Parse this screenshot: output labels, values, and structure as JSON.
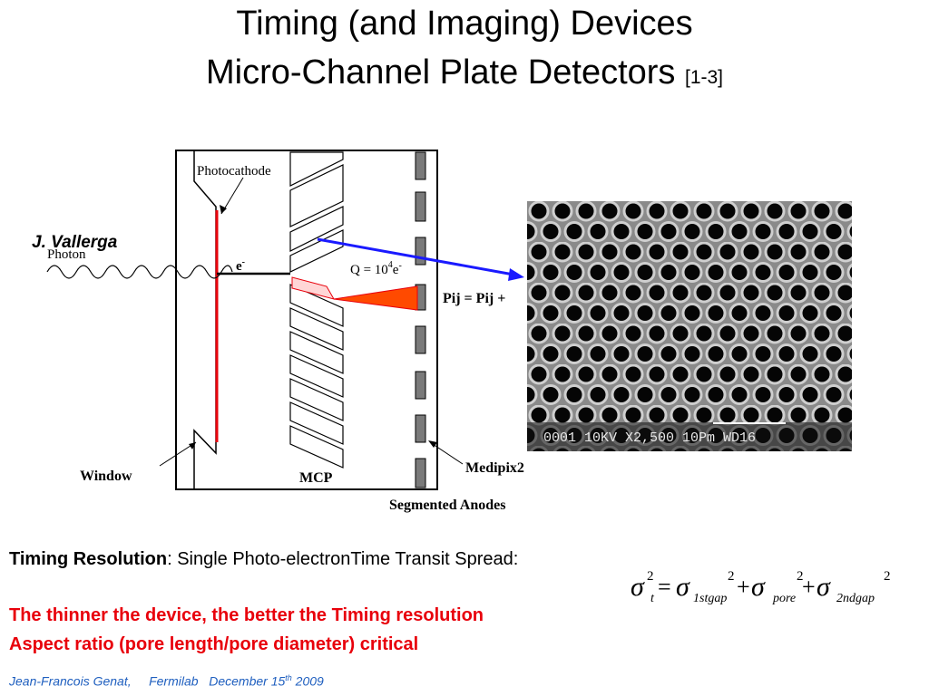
{
  "title": {
    "line1": "Timing (and Imaging) Devices",
    "line2": "Micro-Channel Plate Detectors",
    "reference": "[1-3]"
  },
  "credit": "J. Vallerga",
  "diagram": {
    "photocathode_label": "Photocathode",
    "photon_label": "Photon",
    "electron_label": "e",
    "electron_sup": "-",
    "gain_label": "Q = 10",
    "gain_exp": "4",
    "gain_unit": "e",
    "gain_unit_sup": "-",
    "pij_label": "Pij = Pij +",
    "window_label": "Window",
    "mcp_label": "MCP",
    "medipix_label": "Medipix2",
    "anodes_label": "Segmented  Anodes"
  },
  "micrograph": {
    "caption": "0001  10KV   X2,500   10Pm WD16"
  },
  "timing": {
    "label": "Timing Resolution",
    "text": ":   Single Photo-electronTime Transit Spread:"
  },
  "formula": {
    "sigma": "σ",
    "sub_t": "t",
    "sub_1": "1stgap",
    "sub_pore": "pore",
    "sub_2": "2ndgap",
    "exp": "2",
    "eq": "=",
    "plus": "+"
  },
  "notes": {
    "line1": "The thinner the device, the better the Timing resolution",
    "line2": "Aspect ratio (pore length/pore diameter) critical"
  },
  "footer": {
    "author": "Jean-Francois Genat,",
    "lab": "Fermilab",
    "date": "December 15",
    "date_sup": "th",
    "year": " 2009"
  },
  "colors": {
    "red": "#e8000b",
    "arrow_blue": "#1a1aff",
    "footer_blue": "#1f5fbf",
    "avalanche": "#ff4a00"
  }
}
